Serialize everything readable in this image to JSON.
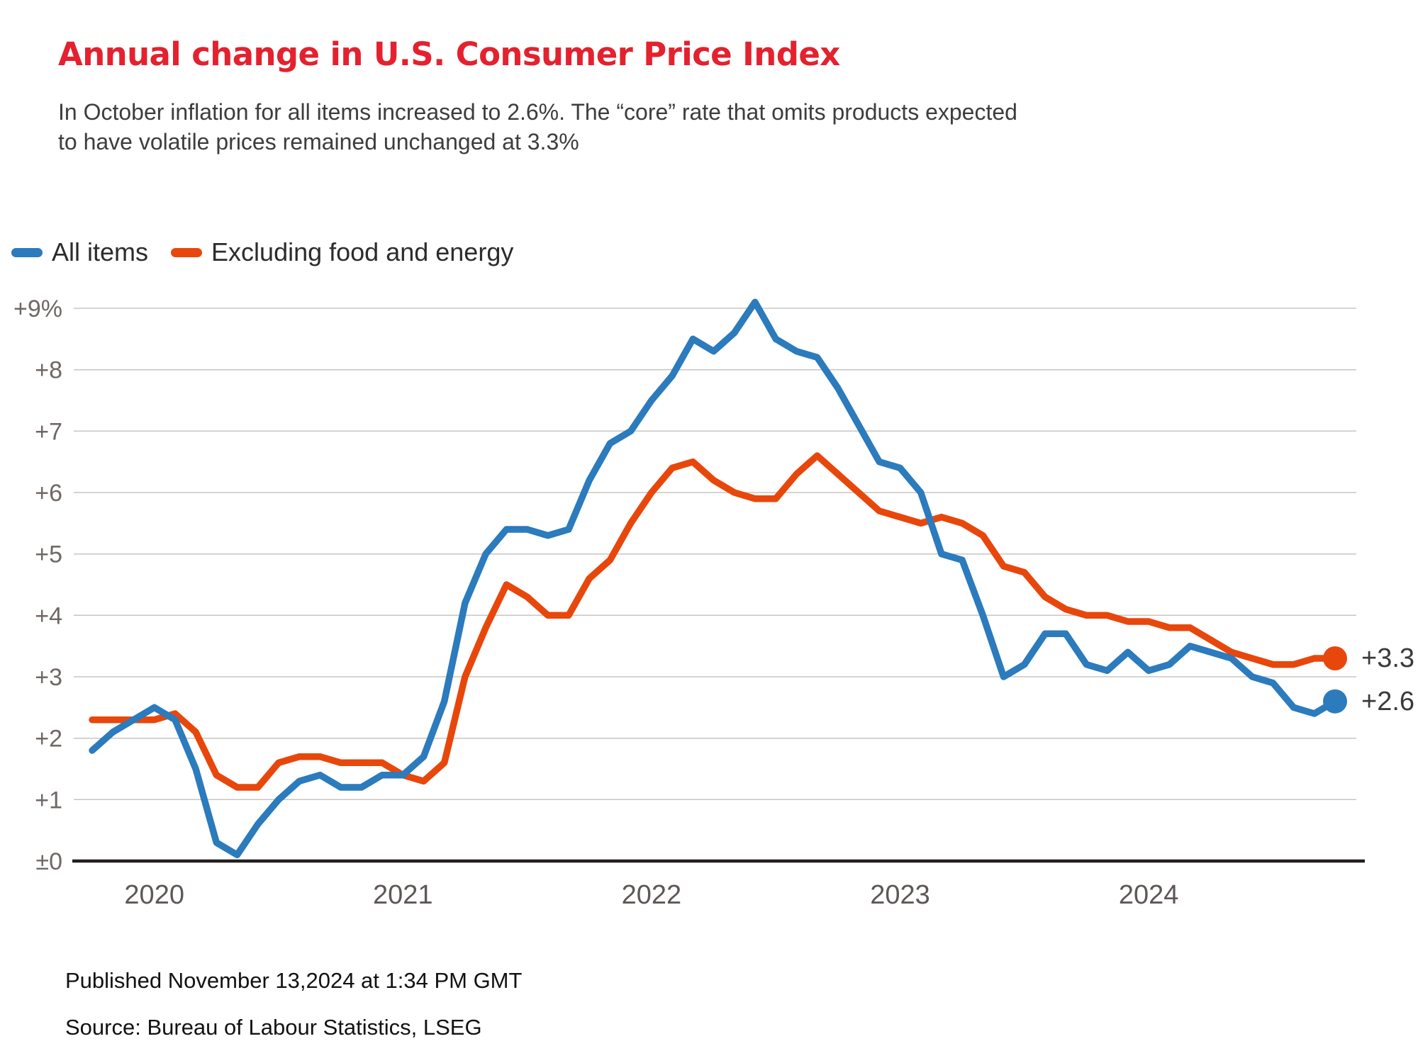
{
  "page": {
    "background": "#ffffff"
  },
  "header": {
    "title": "Annual change in U.S. Consumer Price Index",
    "title_color": "#e4212e",
    "subtitle_line1": "In October inflation for all items increased to 2.6%. The “core” rate that omits products expected",
    "subtitle_line2": "to have volatile prices remained unchanged at 3.3%"
  },
  "legend": {
    "items": [
      {
        "label": "All items",
        "color": "#2b7bbd"
      },
      {
        "label": "Excluding food and energy",
        "color": "#e8470c"
      }
    ]
  },
  "footer": {
    "published": "Published November 13,2024 at 1:34 PM GMT",
    "source": "Source: Bureau of Labour Statistics, LSEG"
  },
  "style": {
    "gridline_color": "#cbc5c1",
    "baseline_color": "#211e1d",
    "ytick_color": "#6f6865",
    "xtick_color": "#5d5755",
    "end_label_color": "#3a3a3a"
  },
  "chart_data": {
    "type": "line",
    "title": "Annual change in U.S. Consumer Price Index",
    "unit": "percent, year-over-year, monthly",
    "x_start_month": "Oct 2019",
    "x_end_month": "Oct 2024",
    "ylim": [
      0,
      9.5
    ],
    "grid": true,
    "legend_position": "top-left",
    "ytick_values": [
      9,
      8,
      7,
      6,
      5,
      4,
      3,
      2,
      1,
      0
    ],
    "ytick_labels": [
      "+9%",
      "+8",
      "+7",
      "+6",
      "+5",
      "+4",
      "+3",
      "+2",
      "+1",
      "±0"
    ],
    "xtick_labels": [
      "2020",
      "2021",
      "2022",
      "2023",
      "2024"
    ],
    "xtick_month_index": [
      3,
      15,
      27,
      39,
      51
    ],
    "series": [
      {
        "name": "All items",
        "color": "#2b7bbd",
        "end_label": "+2.6",
        "values": [
          1.8,
          2.1,
          2.3,
          2.5,
          2.3,
          1.5,
          0.3,
          0.1,
          0.6,
          1.0,
          1.3,
          1.4,
          1.2,
          1.2,
          1.4,
          1.4,
          1.7,
          2.6,
          4.2,
          5.0,
          5.4,
          5.4,
          5.3,
          5.4,
          6.2,
          6.8,
          7.0,
          7.5,
          7.9,
          8.5,
          8.3,
          8.6,
          9.1,
          8.5,
          8.3,
          8.2,
          7.7,
          7.1,
          6.5,
          6.4,
          6.0,
          5.0,
          4.9,
          4.0,
          3.0,
          3.2,
          3.7,
          3.7,
          3.2,
          3.1,
          3.4,
          3.1,
          3.2,
          3.5,
          3.4,
          3.3,
          3.0,
          2.9,
          2.5,
          2.4,
          2.6
        ]
      },
      {
        "name": "Excluding food and energy",
        "color": "#e8470c",
        "end_label": "+3.3",
        "values": [
          2.3,
          2.3,
          2.3,
          2.3,
          2.4,
          2.1,
          1.4,
          1.2,
          1.2,
          1.6,
          1.7,
          1.7,
          1.6,
          1.6,
          1.6,
          1.4,
          1.3,
          1.6,
          3.0,
          3.8,
          4.5,
          4.3,
          4.0,
          4.0,
          4.6,
          4.9,
          5.5,
          6.0,
          6.4,
          6.5,
          6.2,
          6.0,
          5.9,
          5.9,
          6.3,
          6.6,
          6.3,
          6.0,
          5.7,
          5.6,
          5.5,
          5.6,
          5.5,
          5.3,
          4.8,
          4.7,
          4.3,
          4.1,
          4.0,
          4.0,
          3.9,
          3.9,
          3.8,
          3.8,
          3.6,
          3.4,
          3.3,
          3.2,
          3.2,
          3.3,
          3.3
        ]
      }
    ]
  }
}
